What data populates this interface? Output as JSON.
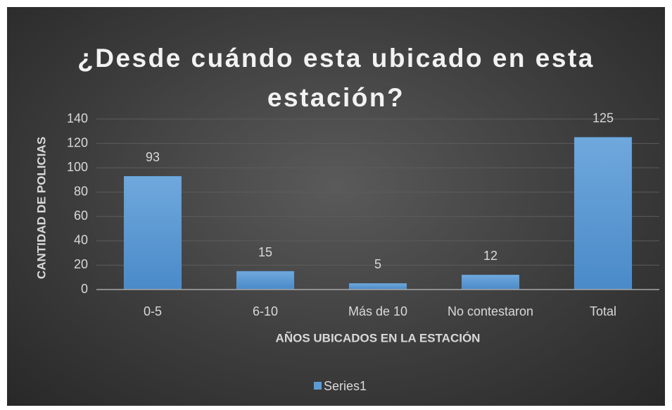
{
  "chart_data": {
    "type": "bar",
    "title": "¿Desde cuándo esta ubicado en esta estación?",
    "x_label": "AÑOS UBICADOS EN LA ESTACIÓN",
    "y_label": "CANTIDAD DE POLICIAS",
    "categories": [
      "0-5",
      "6-10",
      "Más de 10",
      "No contestaron",
      "Total"
    ],
    "series": [
      {
        "name": "Series1",
        "color": "#5b9bd5",
        "values": [
          93,
          15,
          5,
          12,
          125
        ]
      }
    ],
    "ylim": [
      0,
      140
    ],
    "yticks": [
      0,
      20,
      40,
      60,
      80,
      100,
      120,
      140
    ],
    "grid": true,
    "legend": "bottom"
  }
}
